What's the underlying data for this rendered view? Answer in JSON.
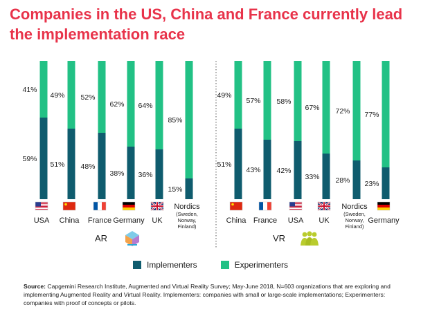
{
  "title": "Companies in the US, China and France currently lead the implementation race",
  "colors": {
    "implementers": "#0f5c6e",
    "experimenters": "#22c185",
    "title": "#e8334a"
  },
  "legend": {
    "implementers": "Implementers",
    "experimenters": "Experimenters"
  },
  "source": {
    "label": "Source:",
    "text": "Capgemini Research Institute, Augmented and Virtual Reality Survey; May-June 2018, N=603 organizations that are exploring and implementing Augmented Reality and Virtual Reality. Implementers: companies with small or large-scale implementations; Experimenters: companies with proof of concepts or pilots."
  },
  "chart_data": [
    {
      "type": "bar",
      "stacked": true,
      "group_label": "AR",
      "categories": [
        "USA",
        "China",
        "France",
        "Germany",
        "UK",
        "Nordics"
      ],
      "category_notes": [
        "",
        "",
        "",
        "",
        "",
        "(Sweden, Norway, Finland)"
      ],
      "flags": [
        "us-flag",
        "china-flag",
        "france-flag",
        "germany-flag",
        "uk-flag",
        ""
      ],
      "series": [
        {
          "name": "Implementers",
          "values": [
            59,
            51,
            48,
            38,
            36,
            15
          ]
        },
        {
          "name": "Experimenters",
          "values": [
            41,
            49,
            52,
            62,
            64,
            85
          ]
        }
      ],
      "ylim": [
        0,
        100
      ]
    },
    {
      "type": "bar",
      "stacked": true,
      "group_label": "VR",
      "categories": [
        "China",
        "France",
        "USA",
        "UK",
        "Nordics",
        "Germany"
      ],
      "category_notes": [
        "",
        "",
        "",
        "",
        "(Sweden, Norway, Finland)",
        ""
      ],
      "flags": [
        "china-flag",
        "france-flag",
        "us-flag",
        "uk-flag",
        "",
        "germany-flag"
      ],
      "series": [
        {
          "name": "Implementers",
          "values": [
            51,
            43,
            42,
            33,
            28,
            23
          ]
        },
        {
          "name": "Experimenters",
          "values": [
            49,
            57,
            58,
            67,
            72,
            77
          ]
        }
      ],
      "ylim": [
        0,
        100
      ]
    }
  ]
}
